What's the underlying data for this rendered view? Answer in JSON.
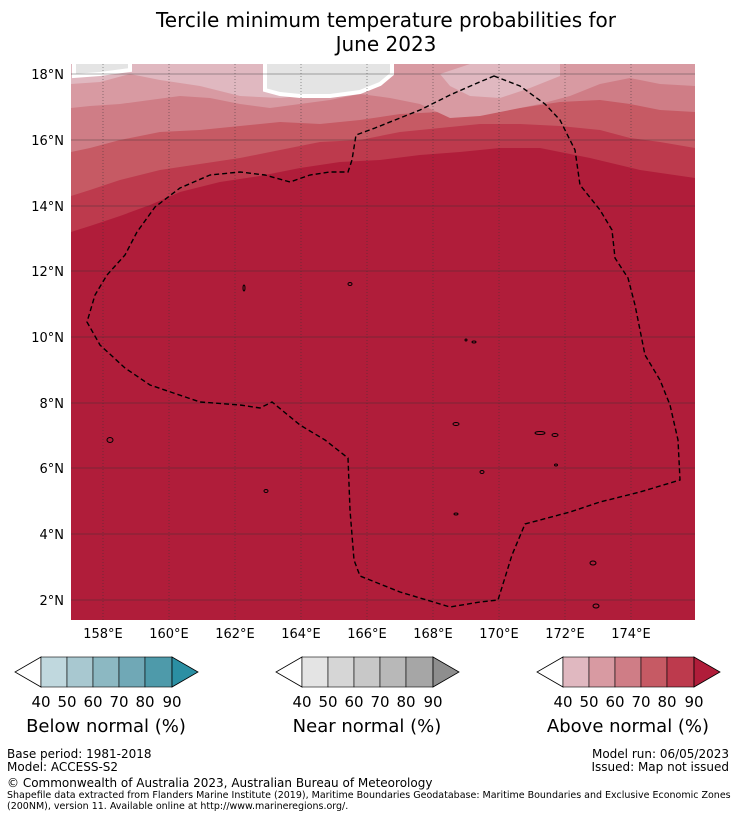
{
  "title_line1": "Tercile minimum temperature probabilities for",
  "title_line2": "June 2023",
  "map": {
    "lon_ticks": [
      "158°E",
      "160°E",
      "162°E",
      "164°E",
      "166°E",
      "168°E",
      "170°E",
      "172°E",
      "174°E"
    ],
    "lat_ticks": [
      "18°N",
      "16°N",
      "14°N",
      "12°N",
      "10°N",
      "8°N",
      "6°N",
      "4°N",
      "2°N"
    ],
    "colors": {
      "c40": "#e0b8c0",
      "c50": "#d89aa2",
      "c60": "#cf7d86",
      "c70": "#c65a64",
      "c80": "#bd3a4d",
      "c90": "#b01d3a",
      "nodata": "#e4e4e4"
    }
  },
  "legends": {
    "below": {
      "label": "Below normal (%)",
      "ticks": [
        "40",
        "50",
        "60",
        "70",
        "80",
        "90"
      ],
      "colors": [
        "#c0d8de",
        "#a8c8d0",
        "#8cb8c2",
        "#70a8b6",
        "#4e9aaa",
        "#2b8fa3"
      ]
    },
    "near": {
      "label": "Near normal (%)",
      "ticks": [
        "40",
        "50",
        "60",
        "70",
        "80",
        "90"
      ],
      "colors": [
        "#e4e4e4",
        "#d6d6d6",
        "#c8c8c8",
        "#b8b8b8",
        "#a6a6a6",
        "#8e8e8e"
      ]
    },
    "above": {
      "label": "Above normal (%)",
      "ticks": [
        "40",
        "50",
        "60",
        "70",
        "80",
        "90"
      ],
      "colors": [
        "#e0b8c0",
        "#d89aa2",
        "#cf7d86",
        "#c65a64",
        "#bd3a4d",
        "#b01d3a"
      ]
    }
  },
  "footer": {
    "base_period": "Base period: 1981-2018",
    "model": "Model: ACCESS-S2",
    "model_run": "Model run: 06/05/2023",
    "issued": "Issued: Map not issued",
    "copyright": "© Commonwealth of Australia 2023, Australian Bureau of Meteorology",
    "shapefile_line1": "Shapefile data extracted from Flanders Marine Institute (2019), Maritime Boundaries Geodatabase: Maritime Boundaries and Exclusive Economic Zones",
    "shapefile_line2": "(200NM), version 11. Available online at http://www.marineregions.org/."
  }
}
